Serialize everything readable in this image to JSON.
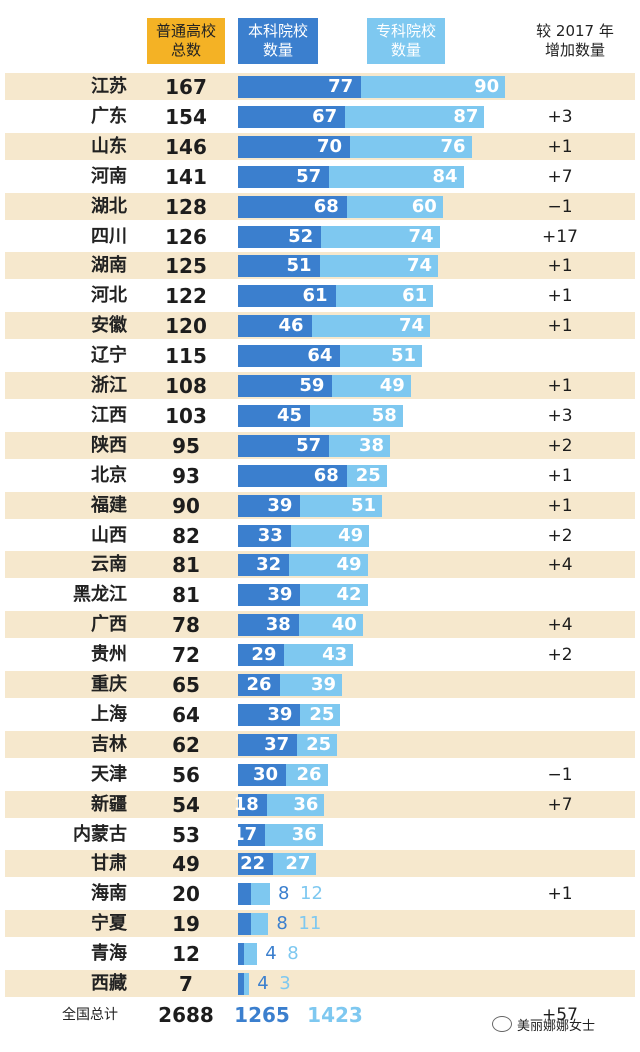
{
  "headers": {
    "total": "普通高校\n总数",
    "ben": "本科院校\n数量",
    "zhuan": "专科院校\n数量",
    "increase": "较 2017 年\n增加数量"
  },
  "colors": {
    "ben": "#3b7fce",
    "zhuan": "#7ec8f0",
    "stripe": "#f6e8cd",
    "total_header": "#f4b225"
  },
  "chart_data": {
    "type": "bar",
    "stacked": true,
    "orientation": "horizontal",
    "categories": [
      "江苏",
      "广东",
      "山东",
      "河南",
      "湖北",
      "四川",
      "湖南",
      "河北",
      "安徽",
      "辽宁",
      "浙江",
      "江西",
      "陕西",
      "北京",
      "福建",
      "山西",
      "云南",
      "黑龙江",
      "广西",
      "贵州",
      "重庆",
      "上海",
      "吉林",
      "天津",
      "新疆",
      "内蒙古",
      "甘肃",
      "海南",
      "宁夏",
      "青海",
      "西藏"
    ],
    "totals": [
      "167",
      "154",
      "146",
      "141",
      "128",
      "126",
      "125",
      "122",
      "120",
      "115",
      "108",
      "103",
      "95",
      "93",
      "90",
      "82",
      "81",
      "81",
      "78",
      "72",
      "65",
      "64",
      "62",
      "56",
      "54",
      "53",
      "49",
      "20",
      "19",
      "12",
      "7"
    ],
    "series": [
      {
        "name": "本科院校数量",
        "values": [
          77,
          67,
          70,
          57,
          68,
          52,
          51,
          61,
          46,
          64,
          59,
          45,
          57,
          68,
          39,
          33,
          32,
          39,
          38,
          29,
          26,
          39,
          37,
          30,
          18,
          17,
          22,
          8,
          8,
          4,
          4
        ]
      },
      {
        "name": "专科院校数量",
        "values": [
          90,
          87,
          76,
          84,
          60,
          74,
          74,
          61,
          74,
          51,
          49,
          58,
          38,
          25,
          51,
          49,
          49,
          42,
          40,
          43,
          39,
          25,
          25,
          26,
          36,
          36,
          27,
          12,
          11,
          8,
          3
        ]
      }
    ],
    "increase": [
      "",
      "+3",
      "+1",
      "+7",
      "−1",
      "+17",
      "+1",
      "+1",
      "+1",
      "",
      "+1",
      "+3",
      "+2",
      "+1",
      "+1",
      "+2",
      "+4",
      "",
      "+4",
      "+2",
      "",
      "",
      "",
      "−1",
      "+7",
      "",
      "",
      "+1",
      "",
      "",
      ""
    ]
  },
  "footer": {
    "label": "全国总计",
    "total": "2688",
    "ben": "1265",
    "zhuan": "1423",
    "increase": "+57"
  },
  "watermark": {
    "text": "美丽娜娜女士",
    "icon": "wechat-icon"
  }
}
